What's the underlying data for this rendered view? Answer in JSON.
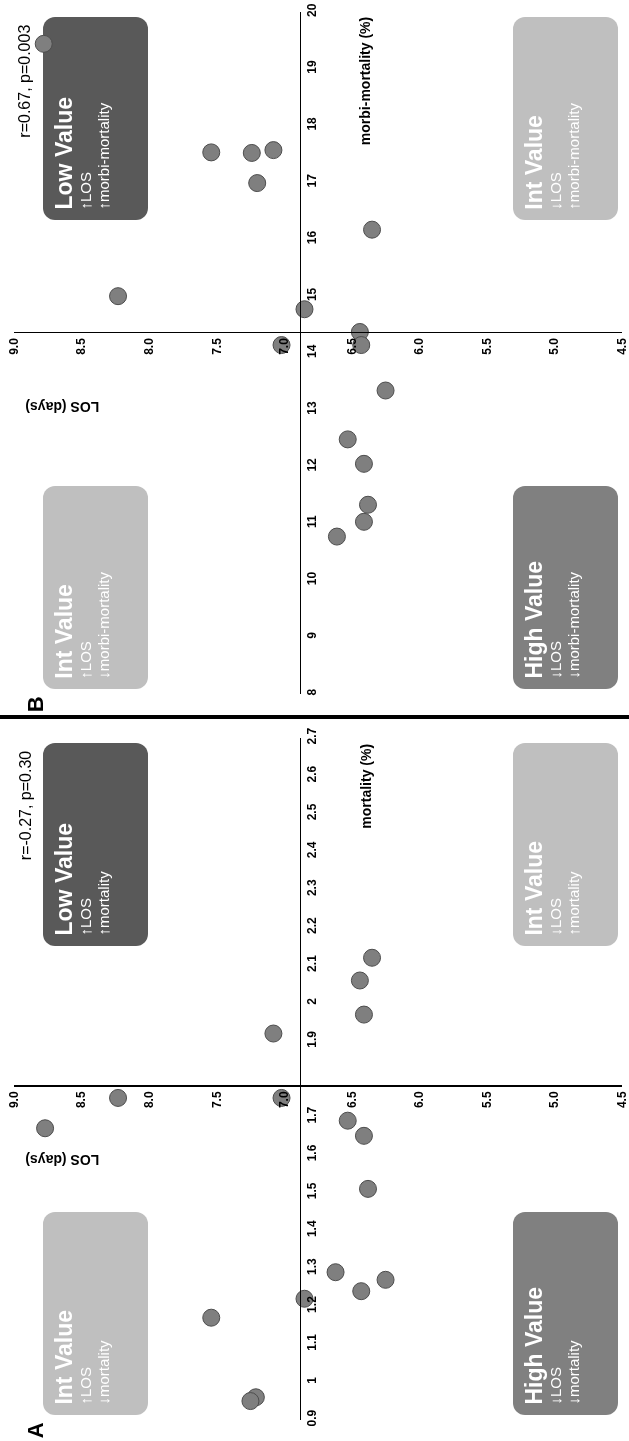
{
  "chart_data": [
    {
      "type": "scatter",
      "xlabel": "LOS (days)",
      "ylabel": "mortality (%)",
      "marker": "circle",
      "x": [
        8.77,
        8.23,
        7.02,
        6.53,
        6.41,
        6.38,
        6.62,
        6.25,
        6.43,
        6.85,
        7.54,
        7.21,
        7.25,
        7.08,
        6.41,
        6.44,
        6.35
      ],
      "series": [
        {
          "color": "#7f7f7f",
          "values": [
            1.67,
            1.75,
            1.75,
            1.69,
            1.65,
            1.51,
            1.29,
            1.27,
            1.24,
            1.22,
            1.17,
            0.96,
            0.95,
            1.92,
            1.97,
            2.06,
            2.12
          ]
        }
      ],
      "xlim": [
        9,
        4.5
      ],
      "xticks": [
        {
          "value": 9,
          "label": "9.0"
        },
        8.5,
        {
          "value": 8,
          "label": "8.0"
        },
        7.5,
        {
          "value": 7,
          "label": "7.0"
        },
        6.5,
        {
          "value": 6,
          "label": "6.0"
        },
        5.5,
        {
          "value": 5,
          "label": "5.0"
        },
        4.5
      ],
      "ylim": [
        0.9,
        2.7
      ],
      "yticks": [
        0.9,
        1,
        1.1,
        1.2,
        1.3,
        1.4,
        1.5,
        1.6,
        1.7,
        1.9,
        2,
        2.1,
        2.2,
        2.3,
        2.4,
        2.5,
        2.6,
        2.7
      ],
      "annotations": [
        "r=-0.27, p=0.30",
        "A",
        "Int Value\n↑LOS\n↓mortality",
        "Low Value\n↑LOS\n↑mortality",
        "High Value\n↓LOS\n↓mortality",
        "Int Value\n↓LOS\n↑mortality"
      ]
    },
    {
      "type": "scatter",
      "xlabel": "LOS (days)",
      "ylabel": "morbi-mortality (%)",
      "marker": "circle",
      "x": [
        8.78,
        7.54,
        7.24,
        7.08,
        7.2,
        6.35,
        8.23,
        6.85,
        6.44,
        6.43,
        7.02,
        6.25,
        6.53,
        6.41,
        6.38,
        6.41,
        6.61
      ],
      "series": [
        {
          "color": "#7f7f7f",
          "values": [
            19.44,
            17.53,
            17.52,
            17.57,
            16.99,
            16.17,
            15.0,
            14.77,
            14.37,
            14.14,
            14.14,
            13.34,
            12.48,
            12.05,
            11.33,
            11.03,
            10.77
          ]
        }
      ],
      "xlim": [
        9,
        4.5
      ],
      "xticks": [
        {
          "value": 9,
          "label": "9.0"
        },
        8.5,
        {
          "value": 8,
          "label": "8.0"
        },
        7.5,
        {
          "value": 7,
          "label": "7.0"
        },
        6.5,
        {
          "value": 6,
          "label": "6.0"
        },
        5.5,
        {
          "value": 5,
          "label": "5.0"
        },
        4.5
      ],
      "ylim": [
        8,
        20
      ],
      "yticks": [
        8,
        9,
        10,
        11,
        12,
        13,
        14,
        15,
        16,
        17,
        18,
        19,
        20
      ],
      "annotations": [
        "r=0.67, p=0.003",
        "B",
        "Int Value\n↑LOS\n↓morbi-mortality",
        "Low Value\n↑LOS\n↑morbi-mortality",
        "High Value\n↓LOS\n↓morbi-mortality",
        "Int Value\n↓LOS\n↑morbi-mortality"
      ]
    }
  ]
}
